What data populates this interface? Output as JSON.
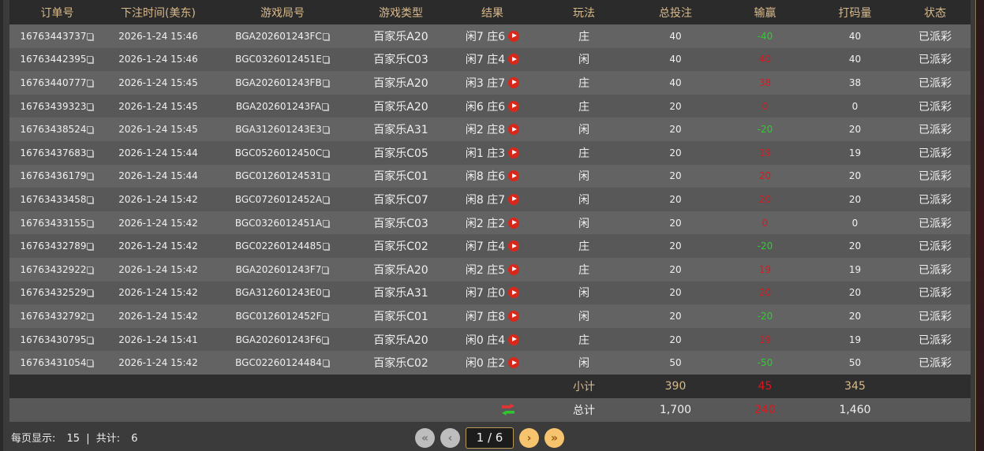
{
  "headers": [
    "订单号",
    "下注时间(美东)",
    "游戏局号",
    "游戏类型",
    "结果",
    "玩法",
    "总投注",
    "输赢",
    "打码量",
    "状态"
  ],
  "colors": {
    "win": "#e0161c",
    "loss": "#2bd02b",
    "header_text": "#d9b98a"
  },
  "rows": [
    {
      "order": "16763443737",
      "time": "2026-1-24 15:46",
      "round": "BGA202601243FC",
      "game": "百家乐A20",
      "result": "闲7 庄6",
      "bet_type": "庄",
      "stake": "40",
      "winloss": "-40",
      "wl_color": "green",
      "turnover": "40",
      "status": "已派彩"
    },
    {
      "order": "16763442395",
      "time": "2026-1-24 15:46",
      "round": "BGC0326012451E",
      "game": "百家乐C03",
      "result": "闲7 庄4",
      "bet_type": "闲",
      "stake": "40",
      "winloss": "40",
      "wl_color": "red",
      "turnover": "40",
      "status": "已派彩"
    },
    {
      "order": "16763440777",
      "time": "2026-1-24 15:45",
      "round": "BGA202601243FB",
      "game": "百家乐A20",
      "result": "闲3 庄7",
      "bet_type": "庄",
      "stake": "40",
      "winloss": "38",
      "wl_color": "red",
      "turnover": "38",
      "status": "已派彩"
    },
    {
      "order": "16763439323",
      "time": "2026-1-24 15:45",
      "round": "BGA202601243FA",
      "game": "百家乐A20",
      "result": "闲6 庄6",
      "bet_type": "庄",
      "stake": "20",
      "winloss": "0",
      "wl_color": "red",
      "turnover": "0",
      "status": "已派彩"
    },
    {
      "order": "16763438524",
      "time": "2026-1-24 15:45",
      "round": "BGA312601243E3",
      "game": "百家乐A31",
      "result": "闲2 庄8",
      "bet_type": "闲",
      "stake": "20",
      "winloss": "-20",
      "wl_color": "green",
      "turnover": "20",
      "status": "已派彩"
    },
    {
      "order": "16763437683",
      "time": "2026-1-24 15:44",
      "round": "BGC0526012450C",
      "game": "百家乐C05",
      "result": "闲1 庄3",
      "bet_type": "庄",
      "stake": "20",
      "winloss": "19",
      "wl_color": "red",
      "turnover": "19",
      "status": "已派彩"
    },
    {
      "order": "16763436179",
      "time": "2026-1-24 15:44",
      "round": "BGC01260124531",
      "game": "百家乐C01",
      "result": "闲8 庄6",
      "bet_type": "闲",
      "stake": "20",
      "winloss": "20",
      "wl_color": "red",
      "turnover": "20",
      "status": "已派彩"
    },
    {
      "order": "16763433458",
      "time": "2026-1-24 15:42",
      "round": "BGC0726012452A",
      "game": "百家乐C07",
      "result": "闲8 庄7",
      "bet_type": "闲",
      "stake": "20",
      "winloss": "20",
      "wl_color": "red",
      "turnover": "20",
      "status": "已派彩"
    },
    {
      "order": "16763433155",
      "time": "2026-1-24 15:42",
      "round": "BGC0326012451A",
      "game": "百家乐C03",
      "result": "闲2 庄2",
      "bet_type": "闲",
      "stake": "20",
      "winloss": "0",
      "wl_color": "red",
      "turnover": "0",
      "status": "已派彩"
    },
    {
      "order": "16763432789",
      "time": "2026-1-24 15:42",
      "round": "BGC02260124485",
      "game": "百家乐C02",
      "result": "闲7 庄4",
      "bet_type": "庄",
      "stake": "20",
      "winloss": "-20",
      "wl_color": "green",
      "turnover": "20",
      "status": "已派彩"
    },
    {
      "order": "16763432922",
      "time": "2026-1-24 15:42",
      "round": "BGA202601243F7",
      "game": "百家乐A20",
      "result": "闲2 庄5",
      "bet_type": "庄",
      "stake": "20",
      "winloss": "19",
      "wl_color": "red",
      "turnover": "19",
      "status": "已派彩"
    },
    {
      "order": "16763432529",
      "time": "2026-1-24 15:42",
      "round": "BGA312601243E0",
      "game": "百家乐A31",
      "result": "闲7 庄0",
      "bet_type": "闲",
      "stake": "20",
      "winloss": "20",
      "wl_color": "red",
      "turnover": "20",
      "status": "已派彩"
    },
    {
      "order": "16763432792",
      "time": "2026-1-24 15:42",
      "round": "BGC0126012452F",
      "game": "百家乐C01",
      "result": "闲7 庄8",
      "bet_type": "闲",
      "stake": "20",
      "winloss": "-20",
      "wl_color": "green",
      "turnover": "20",
      "status": "已派彩"
    },
    {
      "order": "16763430795",
      "time": "2026-1-24 15:41",
      "round": "BGA202601243F6",
      "game": "百家乐A20",
      "result": "闲0 庄4",
      "bet_type": "庄",
      "stake": "20",
      "winloss": "19",
      "wl_color": "red",
      "turnover": "19",
      "status": "已派彩"
    },
    {
      "order": "16763431054",
      "time": "2026-1-24 15:42",
      "round": "BGC02260124484",
      "game": "百家乐C02",
      "result": "闲0 庄2",
      "bet_type": "闲",
      "stake": "50",
      "winloss": "-50",
      "wl_color": "green",
      "turnover": "50",
      "status": "已派彩"
    }
  ],
  "subtotal": {
    "label": "小计",
    "stake": "390",
    "winloss": "45",
    "turnover": "345"
  },
  "total": {
    "label": "总计",
    "stake": "1,700",
    "winloss": "240",
    "turnover": "1,460",
    "refresh_icon": "refresh-icon"
  },
  "footer": {
    "per_page_label": "每页显示:",
    "per_page": "15",
    "sep": "|",
    "total_label": "共计:",
    "total": "6"
  },
  "pager": {
    "first": "«",
    "prev": "‹",
    "current": "1 / 6",
    "next": "›",
    "last": "»"
  }
}
